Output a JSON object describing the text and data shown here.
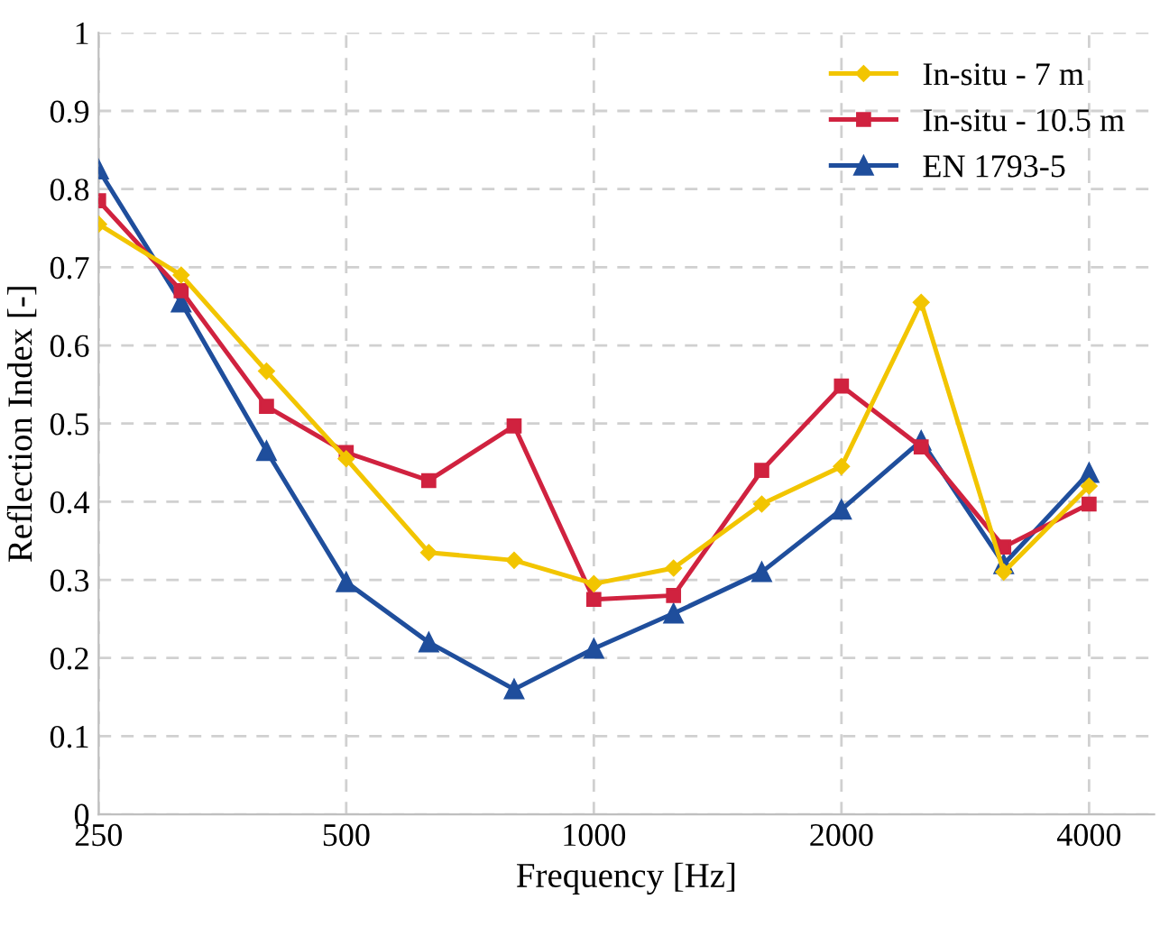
{
  "chart_data": {
    "type": "line",
    "xlabel": "Frequency [Hz]",
    "ylabel": "Reflection Index [-]",
    "x": [
      250,
      315,
      400,
      500,
      630,
      800,
      1000,
      1250,
      1600,
      2000,
      2500,
      3150,
      4000
    ],
    "series": [
      {
        "name": "In-situ - 7 m",
        "color": "#f2c500",
        "marker": "diamond",
        "values": [
          0.755,
          0.69,
          0.567,
          0.455,
          0.335,
          0.325,
          0.295,
          0.315,
          0.397,
          0.445,
          0.655,
          0.31,
          0.42
        ]
      },
      {
        "name": "In-situ - 10.5 m",
        "color": "#d0223f",
        "marker": "square",
        "values": [
          0.785,
          0.67,
          0.522,
          0.463,
          0.427,
          0.497,
          0.275,
          0.28,
          0.44,
          0.548,
          0.47,
          0.342,
          0.397
        ]
      },
      {
        "name": "EN 1793-5",
        "color": "#1f4e9c",
        "marker": "triangle",
        "values": [
          0.825,
          0.655,
          0.465,
          0.297,
          0.22,
          0.16,
          0.212,
          0.257,
          0.31,
          0.39,
          0.478,
          0.32,
          0.437
        ]
      }
    ],
    "log": "x",
    "xlim": [
      250,
      4800
    ],
    "xticks": [
      250,
      500,
      1000,
      2000,
      4000
    ],
    "ylim": [
      0,
      1
    ],
    "yticks": [
      0,
      0.1,
      0.2,
      0.3,
      0.4,
      0.5,
      0.6,
      0.7,
      0.8,
      0.9,
      1
    ],
    "grid": true,
    "legend": "top right",
    "line_style": "solid"
  }
}
